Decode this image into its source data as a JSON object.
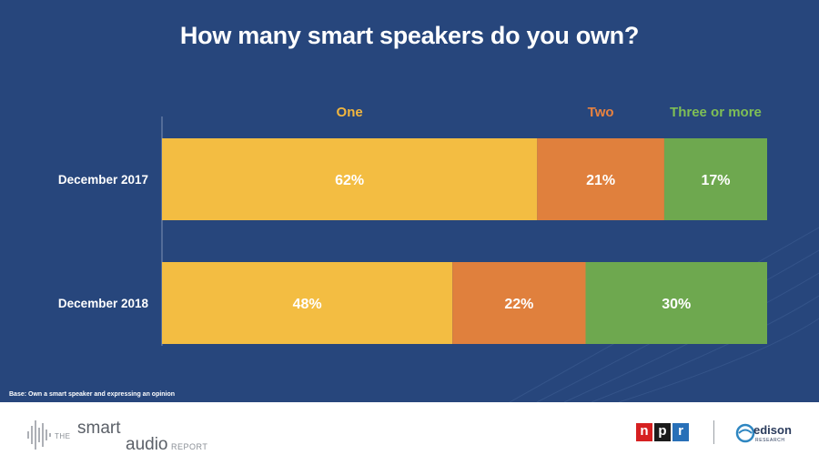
{
  "chart_data": {
    "type": "bar",
    "orientation": "horizontal",
    "stacked": true,
    "percent": true,
    "title": "How many smart speakers do you own?",
    "categories": [
      "December 2017",
      "December 2018"
    ],
    "series": [
      {
        "name": "One",
        "values": [
          62,
          48
        ],
        "color": "#f3bd42",
        "label_color": "#f2b63e"
      },
      {
        "name": "Two",
        "values": [
          21,
          22
        ],
        "color": "#e0803d",
        "label_color": "#e8823f"
      },
      {
        "name": "Three or more",
        "values": [
          17,
          30
        ],
        "color": "#6ea84f",
        "label_color": "#7fbf55"
      }
    ],
    "data_labels": [
      [
        "62%",
        "21%",
        "17%"
      ],
      [
        "48%",
        "22%",
        "30%"
      ]
    ],
    "xlim": [
      0,
      100
    ],
    "grid": false,
    "legend_position": "top"
  },
  "note": "Base: Own a smart speaker and expressing an opinion",
  "footer": {
    "logo_left": {
      "the": "THE",
      "smart": "smart",
      "audio": "audio",
      "report": "REPORT"
    },
    "npr": {
      "n": "n",
      "p": "p",
      "r": "r"
    },
    "edison": {
      "name": "edison",
      "sub": "RESEARCH"
    }
  },
  "colors": {
    "background": "#27467c",
    "text": "#ffffff"
  }
}
